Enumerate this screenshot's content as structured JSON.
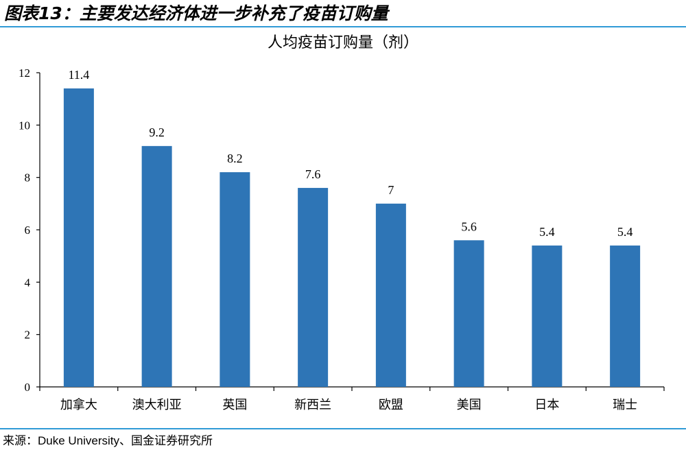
{
  "figure_title": "图表13：主要发达经济体进一步补充了疫苗订购量",
  "source": {
    "label": "来源：",
    "text": "Duke University、国金证券研究所"
  },
  "colors": {
    "bar": "#2e75b6",
    "rule": "#2f9ad6",
    "axis": "#000000"
  },
  "chart_data": {
    "type": "bar",
    "title": "人均疫苗订购量（剂）",
    "xlabel": "",
    "ylabel": "",
    "categories": [
      "加拿大",
      "澳大利亚",
      "英国",
      "新西兰",
      "欧盟",
      "美国",
      "日本",
      "瑞士"
    ],
    "values": [
      11.4,
      9.2,
      8.2,
      7.6,
      7,
      5.6,
      5.4,
      5.4
    ],
    "data_labels": [
      "11.4",
      "9.2",
      "8.2",
      "7.6",
      "7",
      "5.6",
      "5.4",
      "5.4"
    ],
    "ylim": [
      0,
      12
    ],
    "yticks": [
      "0",
      "2",
      "4",
      "6",
      "8",
      "10",
      "12"
    ],
    "grid": false,
    "legend": "none"
  }
}
